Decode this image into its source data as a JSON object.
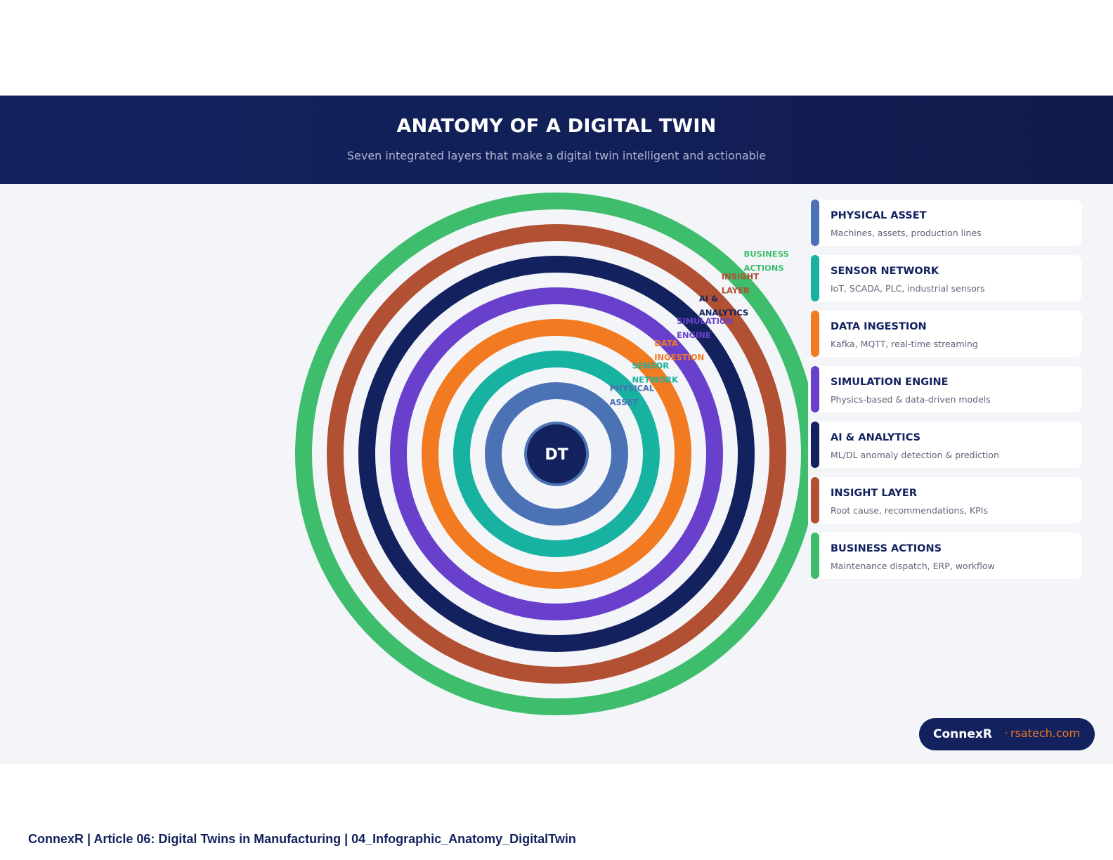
{
  "header": {
    "title": "ANATOMY OF A DIGITAL TWIN",
    "subtitle": "Seven integrated layers that make a digital twin intelligent and actionable"
  },
  "diagram": {
    "center_label": "DT",
    "rings": [
      {
        "label_line1": "PHYSICAL",
        "label_line2": "ASSET",
        "color": "#4a72b4"
      },
      {
        "label_line1": "SENSOR",
        "label_line2": "NETWORK",
        "color": "#17b2a0"
      },
      {
        "label_line1": "DATA",
        "label_line2": "INGESTION",
        "color": "#f27a20"
      },
      {
        "label_line1": "SIMULATION",
        "label_line2": "ENGINE",
        "color": "#6840cc"
      },
      {
        "label_line1": "AI &",
        "label_line2": "ANALYTICS",
        "color": "#13225e"
      },
      {
        "label_line1": "INSIGHT",
        "label_line2": "LAYER",
        "color": "#b25033"
      },
      {
        "label_line1": "BUSINESS",
        "label_line2": "ACTIONS",
        "color": "#3ebd6c"
      }
    ]
  },
  "legend": [
    {
      "name": "PHYSICAL ASSET",
      "desc": "Machines, assets, production lines",
      "color": "#4a72b4"
    },
    {
      "name": "SENSOR NETWORK",
      "desc": "IoT, SCADA, PLC, industrial sensors",
      "color": "#17b2a0"
    },
    {
      "name": "DATA INGESTION",
      "desc": "Kafka, MQTT, real-time streaming",
      "color": "#f27a20"
    },
    {
      "name": "SIMULATION ENGINE",
      "desc": "Physics-based & data-driven models",
      "color": "#6840cc"
    },
    {
      "name": "AI & ANALYTICS",
      "desc": "ML/DL anomaly detection & prediction",
      "color": "#13225e"
    },
    {
      "name": "INSIGHT LAYER",
      "desc": "Root cause, recommendations, KPIs",
      "color": "#b25033"
    },
    {
      "name": "BUSINESS ACTIONS",
      "desc": "Maintenance dispatch, ERP, workflow",
      "color": "#3ebd6c"
    }
  ],
  "brand": {
    "name": "ConnexR",
    "separator": "·",
    "site": "rsatech.com"
  },
  "footer": {
    "text": "ConnexR | Article 06: Digital Twins in Manufacturing | 04_Infographic_Anatomy_DigitalTwin"
  }
}
